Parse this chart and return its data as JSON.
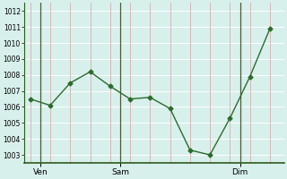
{
  "x": [
    0,
    1,
    2,
    3,
    4,
    5,
    6,
    7,
    8,
    9,
    10,
    11,
    12
  ],
  "y": [
    1006.5,
    1006.1,
    1007.5,
    1008.2,
    1007.3,
    1006.5,
    1006.6,
    1005.9,
    1003.3,
    1003.0,
    1005.3,
    1007.9,
    1010.9
  ],
  "xtick_positions": [
    0.5,
    4.5,
    10.5
  ],
  "xtick_labels": [
    "Ven",
    "Sam",
    "Dim"
  ],
  "vline_day": [
    0.5,
    4.5,
    10.5
  ],
  "vline_grid": [
    0,
    1,
    2,
    3,
    4,
    5,
    6,
    7,
    8,
    9,
    10,
    11,
    12
  ],
  "ytick_min": 1003,
  "ytick_max": 1012,
  "ylim_min": 1002.5,
  "ylim_max": 1012.5,
  "xlim_min": -0.3,
  "xlim_max": 12.7,
  "line_color": "#2d6a2d",
  "marker": "D",
  "markersize": 2.5,
  "linewidth": 1.0,
  "bg_color": "#d8f0ec",
  "grid_h_color": "#ffffff",
  "grid_v_color": "#d4b8b8",
  "vline_day_color": "#4a5a3a",
  "ytick_fontsize": 5.5,
  "xtick_fontsize": 6.5,
  "fig_width": 3.2,
  "fig_height": 2.0,
  "dpi": 100
}
